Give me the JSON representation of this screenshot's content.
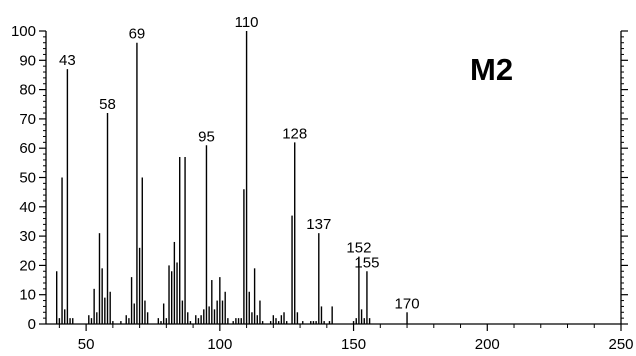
{
  "chart_data": {
    "type": "bar",
    "title": "M2",
    "xlabel": "",
    "ylabel": "",
    "xlim": [
      35,
      250
    ],
    "ylim": [
      0,
      100
    ],
    "x_ticks": [
      50,
      100,
      150,
      200,
      250
    ],
    "x_minor_step": 10,
    "y_ticks": [
      0,
      10,
      20,
      30,
      40,
      50,
      60,
      70,
      80,
      90,
      100
    ],
    "y_minor_step": 2,
    "grid": false,
    "legend": "none",
    "bar_color": "#000000",
    "points": [
      {
        "x": 39,
        "y": 18
      },
      {
        "x": 40,
        "y": 2
      },
      {
        "x": 41,
        "y": 50
      },
      {
        "x": 42,
        "y": 5
      },
      {
        "x": 43,
        "y": 87,
        "label": "43"
      },
      {
        "x": 44,
        "y": 2
      },
      {
        "x": 45,
        "y": 2
      },
      {
        "x": 51,
        "y": 3
      },
      {
        "x": 52,
        "y": 2
      },
      {
        "x": 53,
        "y": 12
      },
      {
        "x": 54,
        "y": 4
      },
      {
        "x": 55,
        "y": 31
      },
      {
        "x": 56,
        "y": 19
      },
      {
        "x": 57,
        "y": 9
      },
      {
        "x": 58,
        "y": 72,
        "label": "58"
      },
      {
        "x": 59,
        "y": 11
      },
      {
        "x": 60,
        "y": 1
      },
      {
        "x": 63,
        "y": 1
      },
      {
        "x": 65,
        "y": 3
      },
      {
        "x": 66,
        "y": 2
      },
      {
        "x": 67,
        "y": 16
      },
      {
        "x": 68,
        "y": 7
      },
      {
        "x": 69,
        "y": 96,
        "label": "69"
      },
      {
        "x": 70,
        "y": 26
      },
      {
        "x": 71,
        "y": 50
      },
      {
        "x": 72,
        "y": 8
      },
      {
        "x": 73,
        "y": 4
      },
      {
        "x": 77,
        "y": 2
      },
      {
        "x": 78,
        "y": 1
      },
      {
        "x": 79,
        "y": 7
      },
      {
        "x": 80,
        "y": 2
      },
      {
        "x": 81,
        "y": 20
      },
      {
        "x": 82,
        "y": 18
      },
      {
        "x": 83,
        "y": 28
      },
      {
        "x": 84,
        "y": 21
      },
      {
        "x": 85,
        "y": 57
      },
      {
        "x": 86,
        "y": 8
      },
      {
        "x": 87,
        "y": 57
      },
      {
        "x": 88,
        "y": 4
      },
      {
        "x": 89,
        "y": 1
      },
      {
        "x": 91,
        "y": 3
      },
      {
        "x": 92,
        "y": 2
      },
      {
        "x": 93,
        "y": 3
      },
      {
        "x": 94,
        "y": 5
      },
      {
        "x": 95,
        "y": 61,
        "label": "95"
      },
      {
        "x": 96,
        "y": 6
      },
      {
        "x": 97,
        "y": 15
      },
      {
        "x": 98,
        "y": 5
      },
      {
        "x": 99,
        "y": 8
      },
      {
        "x": 100,
        "y": 16
      },
      {
        "x": 101,
        "y": 8
      },
      {
        "x": 102,
        "y": 11
      },
      {
        "x": 103,
        "y": 2
      },
      {
        "x": 105,
        "y": 1
      },
      {
        "x": 106,
        "y": 2
      },
      {
        "x": 107,
        "y": 2
      },
      {
        "x": 108,
        "y": 2
      },
      {
        "x": 109,
        "y": 46
      },
      {
        "x": 110,
        "y": 100,
        "label": "110"
      },
      {
        "x": 111,
        "y": 11
      },
      {
        "x": 112,
        "y": 4
      },
      {
        "x": 113,
        "y": 19
      },
      {
        "x": 114,
        "y": 3
      },
      {
        "x": 115,
        "y": 8
      },
      {
        "x": 116,
        "y": 1
      },
      {
        "x": 119,
        "y": 1
      },
      {
        "x": 120,
        "y": 3
      },
      {
        "x": 121,
        "y": 2
      },
      {
        "x": 122,
        "y": 1
      },
      {
        "x": 123,
        "y": 3
      },
      {
        "x": 124,
        "y": 4
      },
      {
        "x": 125,
        "y": 1
      },
      {
        "x": 127,
        "y": 37
      },
      {
        "x": 128,
        "y": 62,
        "label": "128"
      },
      {
        "x": 129,
        "y": 4
      },
      {
        "x": 131,
        "y": 1
      },
      {
        "x": 134,
        "y": 1
      },
      {
        "x": 135,
        "y": 1
      },
      {
        "x": 136,
        "y": 1
      },
      {
        "x": 137,
        "y": 31,
        "label": "137"
      },
      {
        "x": 138,
        "y": 6
      },
      {
        "x": 139,
        "y": 1
      },
      {
        "x": 141,
        "y": 1
      },
      {
        "x": 142,
        "y": 6
      },
      {
        "x": 150,
        "y": 1
      },
      {
        "x": 151,
        "y": 2
      },
      {
        "x": 152,
        "y": 23,
        "label": "152"
      },
      {
        "x": 153,
        "y": 5
      },
      {
        "x": 154,
        "y": 2
      },
      {
        "x": 155,
        "y": 18,
        "label": "155"
      },
      {
        "x": 156,
        "y": 2
      },
      {
        "x": 170,
        "y": 4,
        "label": "170"
      }
    ]
  }
}
